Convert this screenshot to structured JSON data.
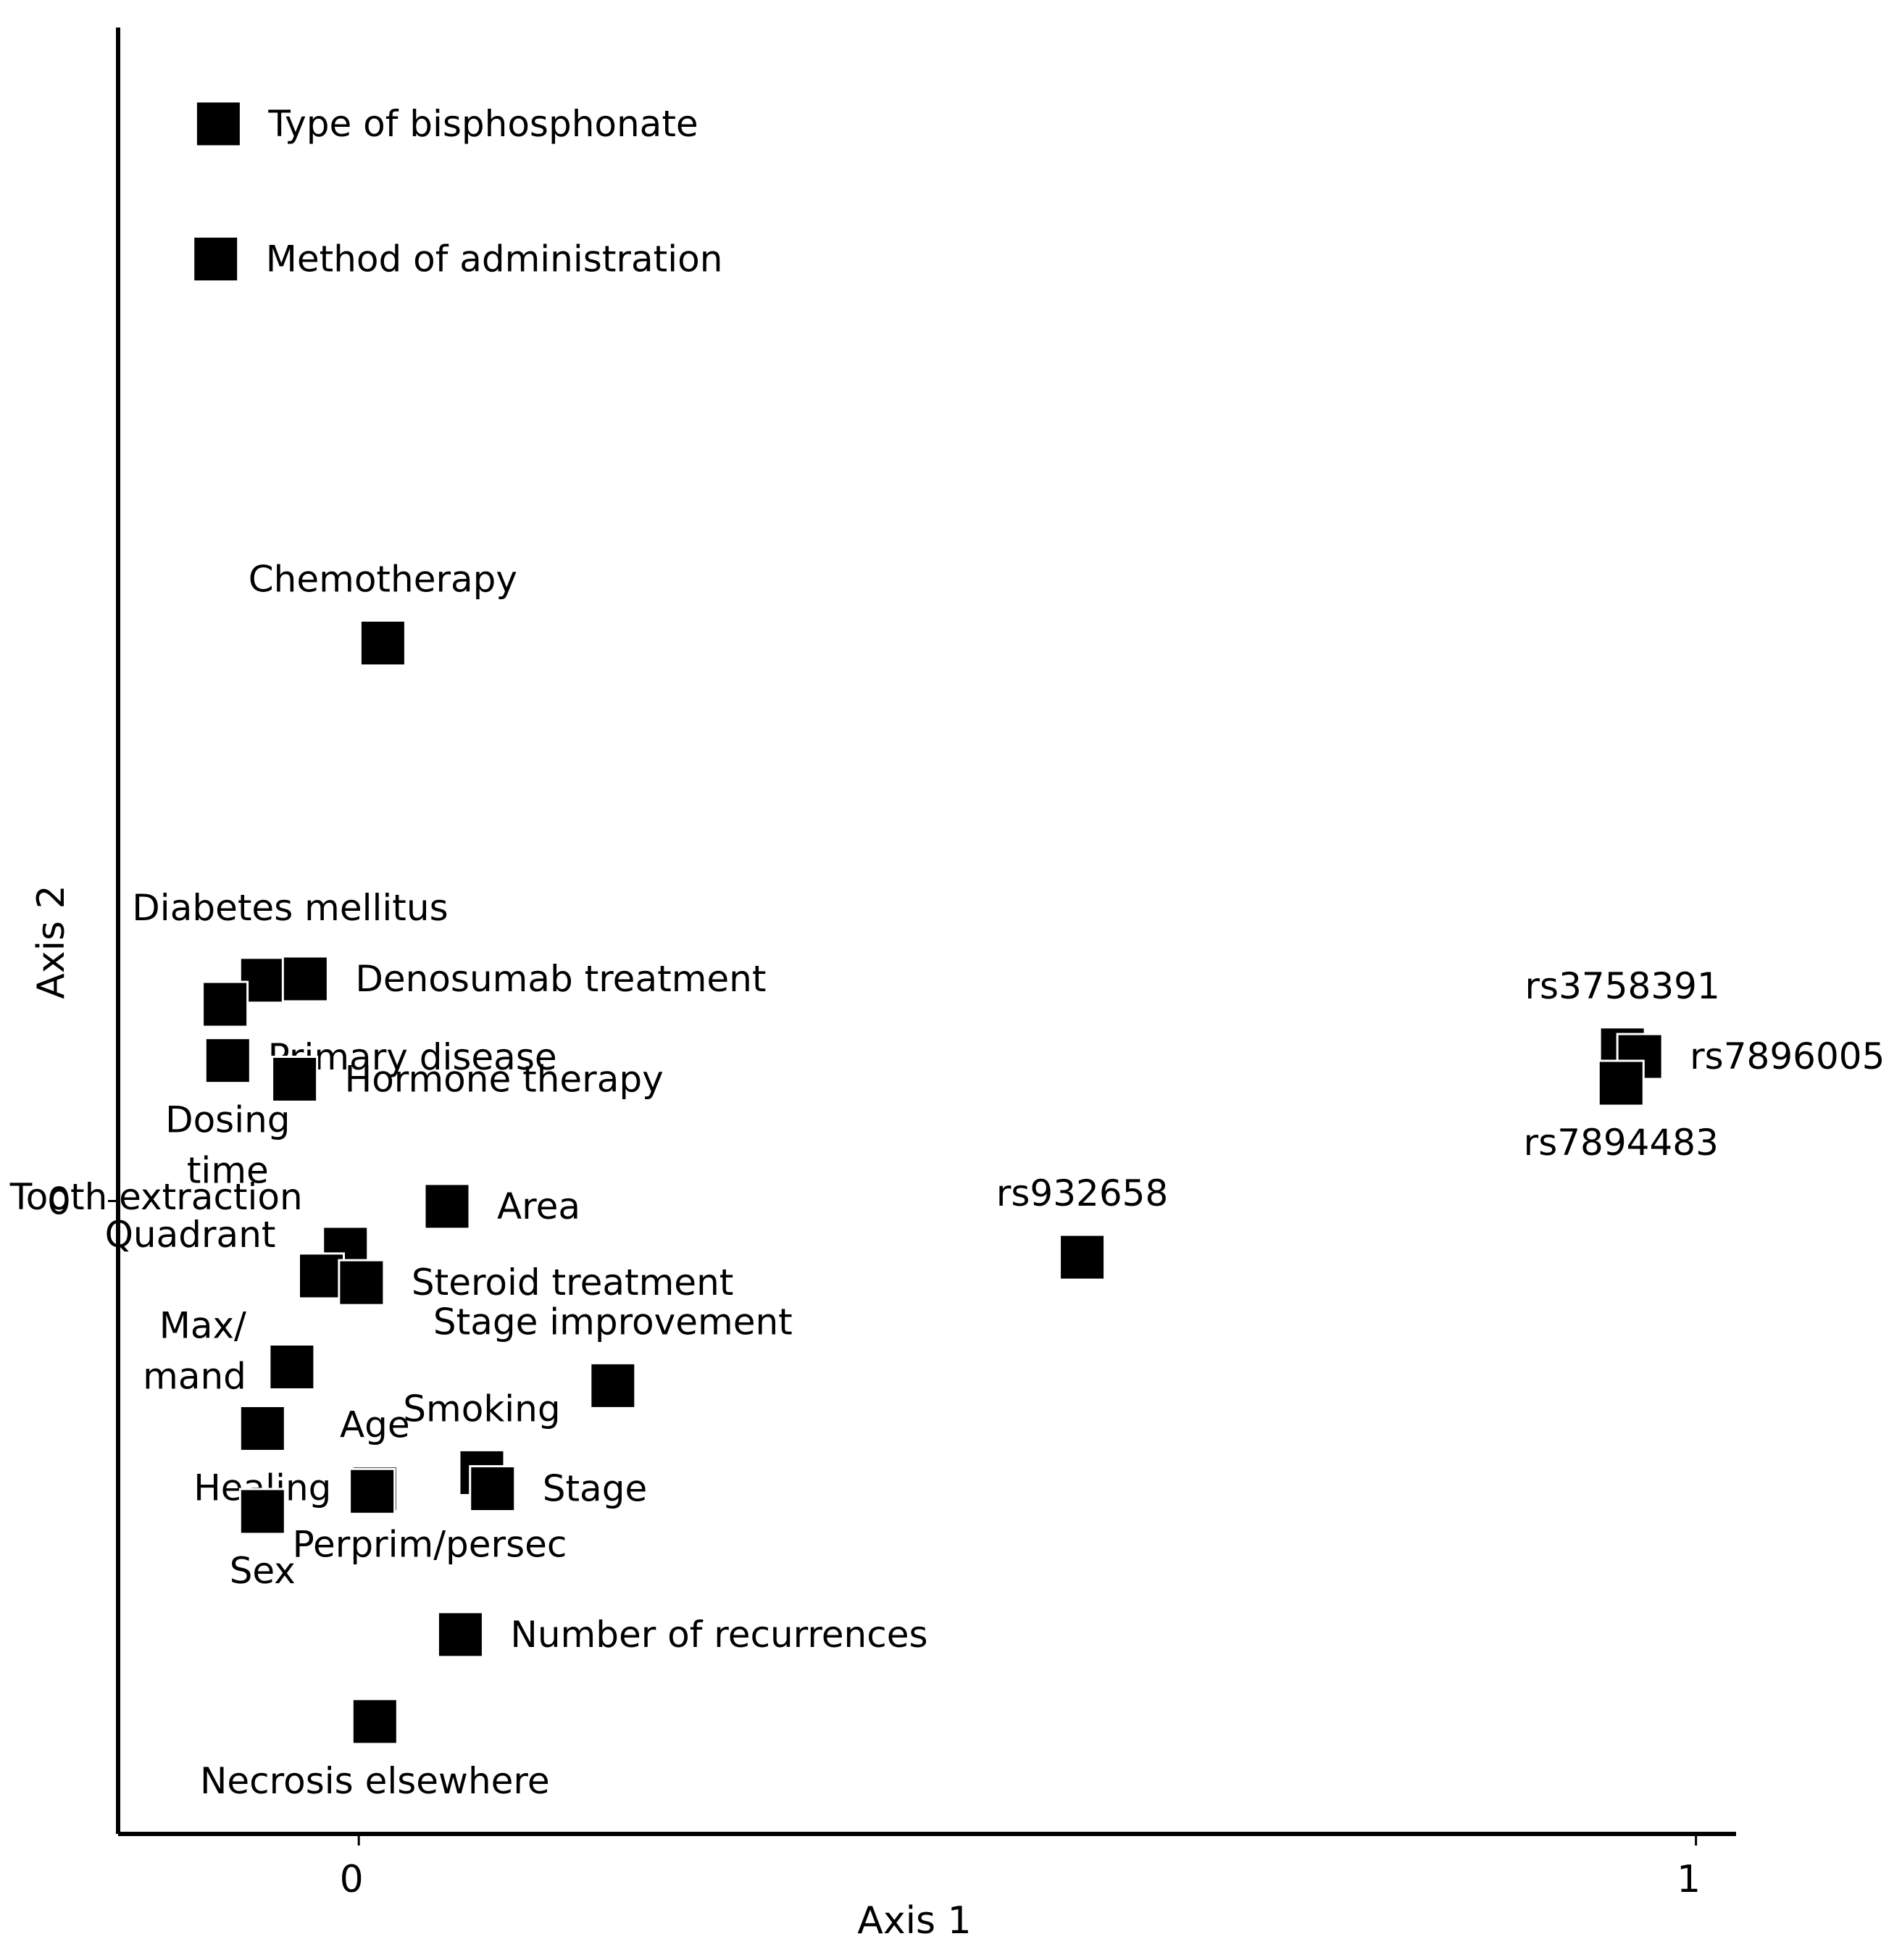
{
  "chart_data": {
    "type": "scatter",
    "title": "",
    "xlabel": "Axis 1",
    "ylabel": "Axis 2",
    "xlim": [
      -0.18,
      1.03
    ],
    "ylim": [
      -0.473,
      0.877
    ],
    "xticks": [
      {
        "value": 0,
        "label": "0"
      },
      {
        "value": 1,
        "label": "1"
      }
    ],
    "yticks": [
      {
        "value": 0,
        "label": "0"
      }
    ],
    "grid": false,
    "marker": "square",
    "points": [
      {
        "label": "Type of bisphosphonate",
        "x": -0.105,
        "y": 0.805,
        "label_lines": [
          "Type of bisphosphonate"
        ],
        "label_pos": "right"
      },
      {
        "label": "Method of administration",
        "x": -0.107,
        "y": 0.704,
        "label_lines": [
          "Method of administration"
        ],
        "label_pos": "right"
      },
      {
        "label": "Chemotherapy",
        "x": 0.018,
        "y": 0.417,
        "label_lines": [
          "Chemotherapy"
        ],
        "label_pos": "above"
      },
      {
        "label": "Diabetes mellitus",
        "x": -0.072,
        "y": 0.165,
        "label_lines": [
          "Diabetes mellitus"
        ],
        "label_pos": "above-left"
      },
      {
        "label": "Denosumab treatment",
        "x": -0.04,
        "y": 0.166,
        "label_lines": [
          "Denosumab treatment"
        ],
        "label_pos": "right"
      },
      {
        "label": "Primary disease",
        "x": -0.1,
        "y": 0.147,
        "label_lines": [
          "Primary disease"
        ],
        "label_pos": "right-below"
      },
      {
        "label": "Dosing time",
        "x": -0.098,
        "y": 0.105,
        "label_lines": [
          "Dosing",
          "time"
        ],
        "label_pos": "below"
      },
      {
        "label": "Hormone therapy",
        "x": -0.048,
        "y": 0.091,
        "label_lines": [
          "Hormone therapy"
        ],
        "label_pos": "right"
      },
      {
        "label": "Area",
        "x": 0.066,
        "y": -0.004,
        "label_lines": [
          "Area"
        ],
        "label_pos": "right"
      },
      {
        "label": "Tooth extraction",
        "x": -0.01,
        "y": -0.036,
        "label_lines": [
          "Tooth extraction"
        ],
        "label_pos": "left-above"
      },
      {
        "label": "Quadrant",
        "x": -0.028,
        "y": -0.056,
        "label_lines": [
          "Quadrant"
        ],
        "label_pos": "left"
      },
      {
        "label": "Steroid treatment",
        "x": 0.002,
        "y": -0.061,
        "label_lines": [
          "Steroid treatment"
        ],
        "label_pos": "right"
      },
      {
        "label": "Max/mand",
        "x": -0.05,
        "y": -0.124,
        "label_lines": [
          "Max/",
          "mand"
        ],
        "label_pos": "left"
      },
      {
        "label": "Stage improvement",
        "x": 0.19,
        "y": -0.138,
        "label_lines": [
          "Stage improvement"
        ],
        "label_pos": "above"
      },
      {
        "label": "Healing",
        "x": -0.072,
        "y": -0.17,
        "label_lines": [
          "Healing"
        ],
        "label_pos": "below"
      },
      {
        "label": "Smoking",
        "x": 0.092,
        "y": -0.203,
        "label_lines": [
          "Smoking"
        ],
        "label_pos": "above"
      },
      {
        "label": "Stage",
        "x": 0.1,
        "y": -0.215,
        "label_lines": [
          "Stage"
        ],
        "label_pos": "right"
      },
      {
        "label": "Age",
        "x": 0.012,
        "y": -0.215,
        "label_lines": [
          "Age"
        ],
        "label_pos": "above"
      },
      {
        "label": "Perprim/persec",
        "x": 0.01,
        "y": -0.217,
        "label_lines": [
          "Perprim/persec"
        ],
        "label_pos": "below-right"
      },
      {
        "label": "Sex",
        "x": -0.072,
        "y": -0.232,
        "label_lines": [
          "Sex"
        ],
        "label_pos": "below"
      },
      {
        "label": "Number of recurrences",
        "x": 0.076,
        "y": -0.324,
        "label_lines": [
          "Number of recurrences"
        ],
        "label_pos": "right"
      },
      {
        "label": "Necrosis elsewhere",
        "x": 0.012,
        "y": -0.389,
        "label_lines": [
          "Necrosis elsewhere"
        ],
        "label_pos": "below"
      },
      {
        "label": "rs932658",
        "x": 0.541,
        "y": -0.042,
        "label_lines": [
          "rs932658"
        ],
        "label_pos": "above"
      },
      {
        "label": "rs3758391",
        "x": 0.945,
        "y": 0.113,
        "label_lines": [
          "rs3758391"
        ],
        "label_pos": "above"
      },
      {
        "label": "rs7896005",
        "x": 0.958,
        "y": 0.108,
        "label_lines": [
          "rs7896005"
        ],
        "label_pos": "right"
      },
      {
        "label": "rs7894483",
        "x": 0.944,
        "y": 0.088,
        "label_lines": [
          "rs7894483"
        ],
        "label_pos": "below"
      }
    ]
  }
}
